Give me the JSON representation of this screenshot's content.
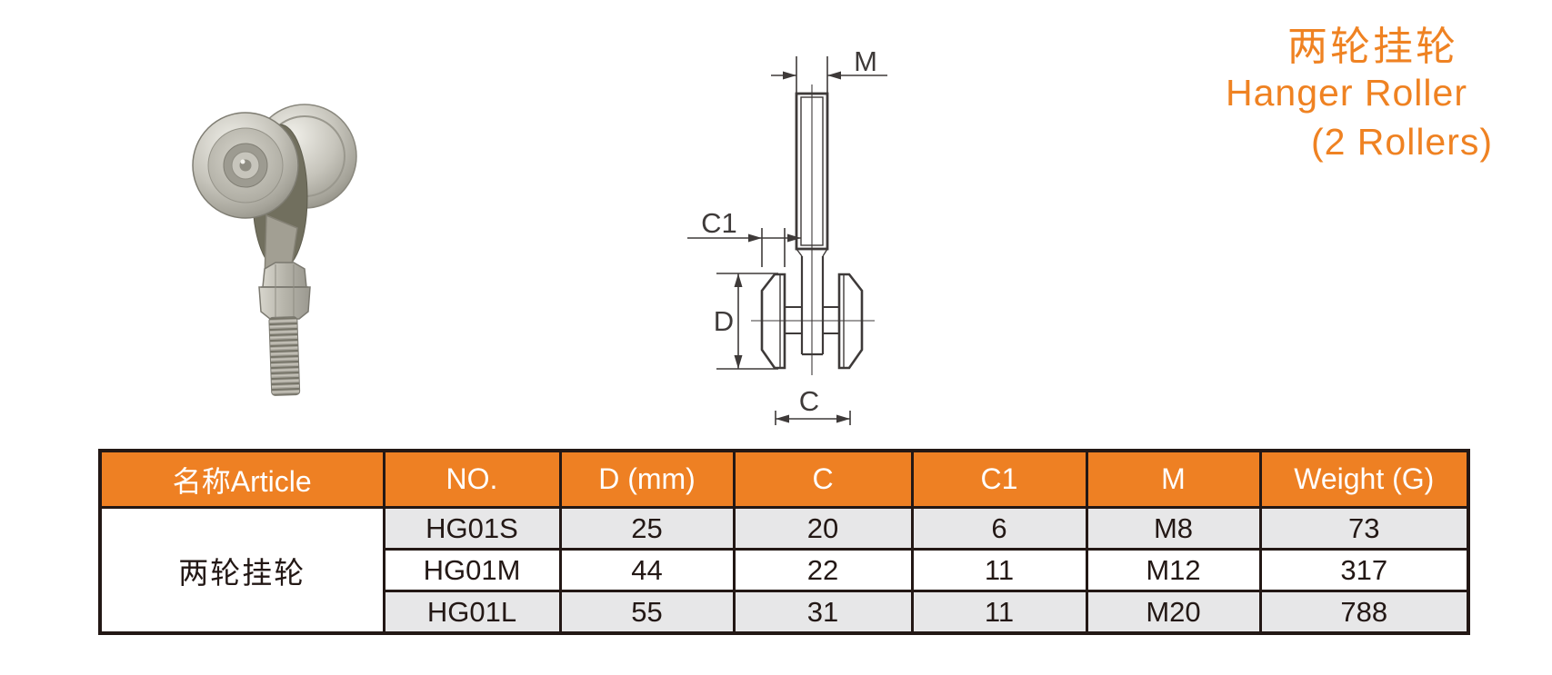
{
  "title": {
    "zh": "两轮挂轮",
    "en_line1": "Hanger Roller",
    "en_line2": "(2 Rollers)"
  },
  "diagram": {
    "labels": {
      "m": "M",
      "c1": "C1",
      "d": "D",
      "c": "C"
    }
  },
  "photo": {
    "description": "two-wheel hanger roller with hex nut and threaded stud"
  },
  "table": {
    "headers": [
      "名称Article",
      "NO.",
      "D (mm)",
      "C",
      "C1",
      "M",
      "Weight (G)"
    ],
    "article": "两轮挂轮",
    "rows": [
      [
        "HG01S",
        "25",
        "20",
        "6",
        "M8",
        "73"
      ],
      [
        "HG01M",
        "44",
        "22",
        "11",
        "M12",
        "317"
      ],
      [
        "HG01L",
        "55",
        "31",
        "11",
        "M20",
        "788"
      ]
    ]
  },
  "colors": {
    "accent_orange": "#EE8023",
    "title_orange": "#EF8222",
    "table_border": "#231815",
    "row_alt_gray": "#E7E7E8",
    "drawing_line": "#3E3A39"
  }
}
